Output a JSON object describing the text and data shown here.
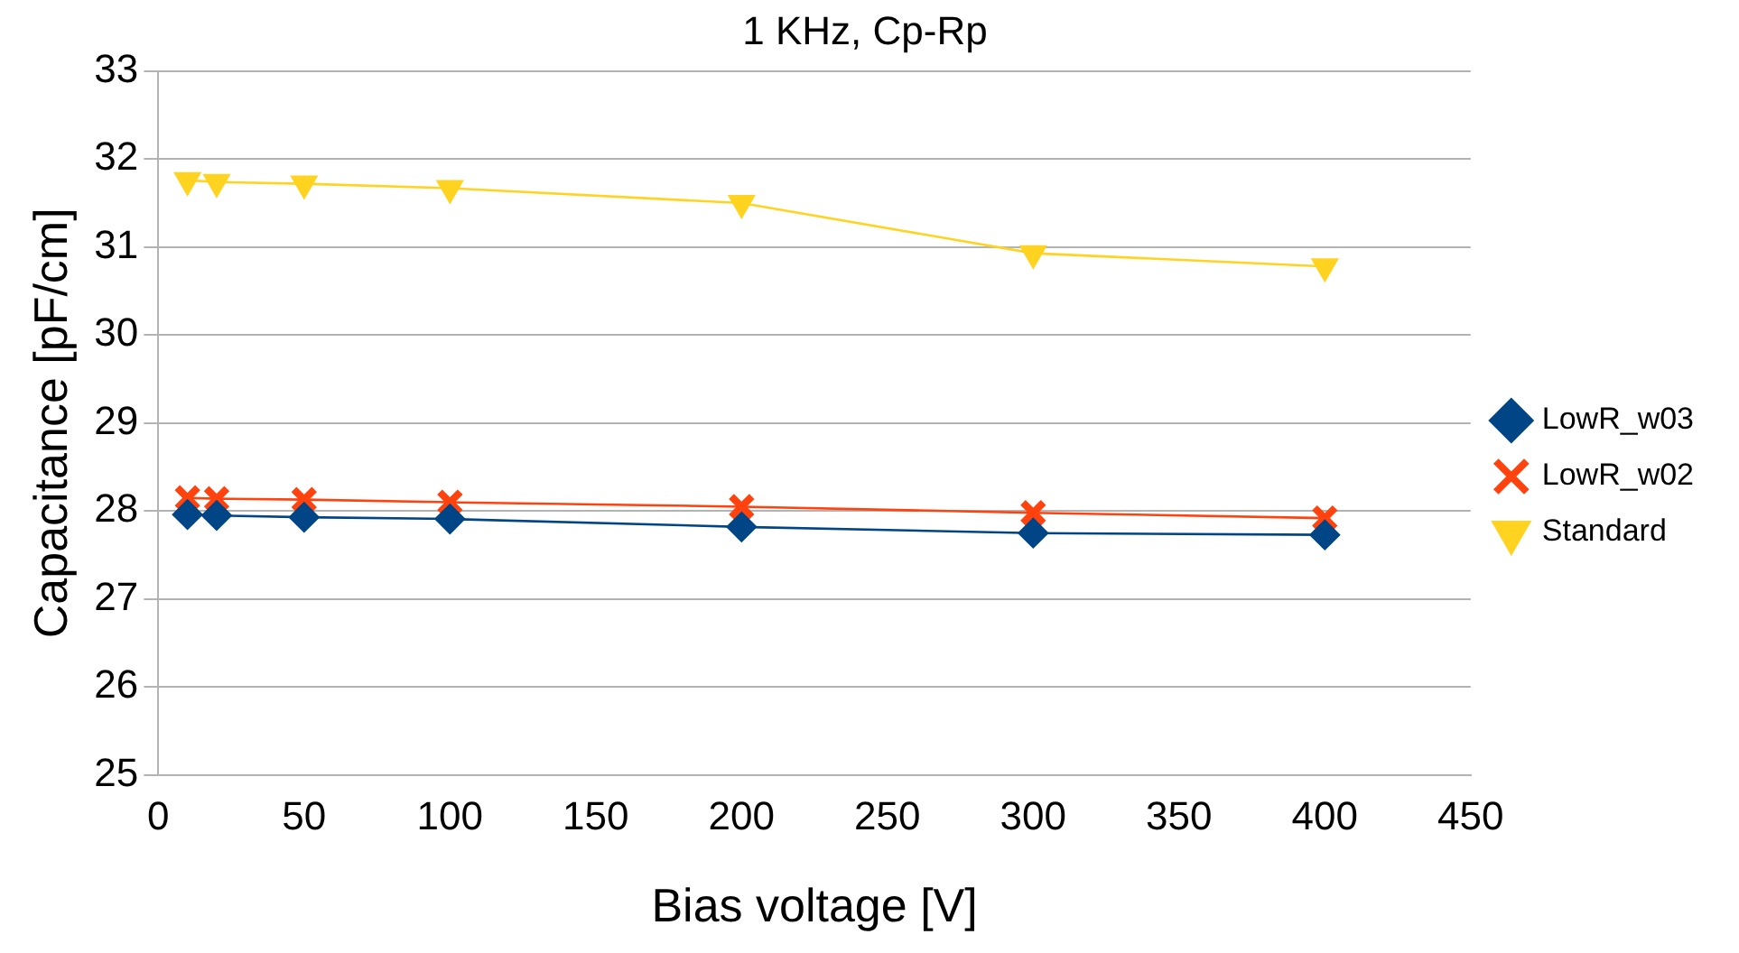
{
  "chart_data": {
    "type": "line",
    "title": "1 KHz, Cp-Rp",
    "xlabel": "Bias voltage [V]",
    "ylabel": "Capacitance [pF/cm]",
    "x": [
      10,
      20,
      50,
      100,
      200,
      300,
      400
    ],
    "series": [
      {
        "name": "LowR_w03",
        "color": "#004586",
        "marker": "diamond",
        "values": [
          27.96,
          27.95,
          27.93,
          27.91,
          27.82,
          27.75,
          27.73
        ]
      },
      {
        "name": "LowR_w02",
        "color": "#ff420e",
        "marker": "cross",
        "values": [
          28.15,
          28.14,
          28.13,
          28.1,
          28.05,
          27.98,
          27.92
        ]
      },
      {
        "name": "Standard",
        "color": "#ffd320",
        "marker": "triangle",
        "values": [
          31.76,
          31.74,
          31.72,
          31.67,
          31.5,
          30.93,
          30.78
        ]
      }
    ],
    "xlim": [
      0,
      450
    ],
    "xticks": [
      0,
      50,
      100,
      150,
      200,
      250,
      300,
      350,
      400,
      450
    ],
    "ylim": [
      25,
      33
    ],
    "yticks": [
      25,
      26,
      27,
      28,
      29,
      30,
      31,
      32,
      33
    ],
    "grid": "y",
    "legend": "right"
  }
}
